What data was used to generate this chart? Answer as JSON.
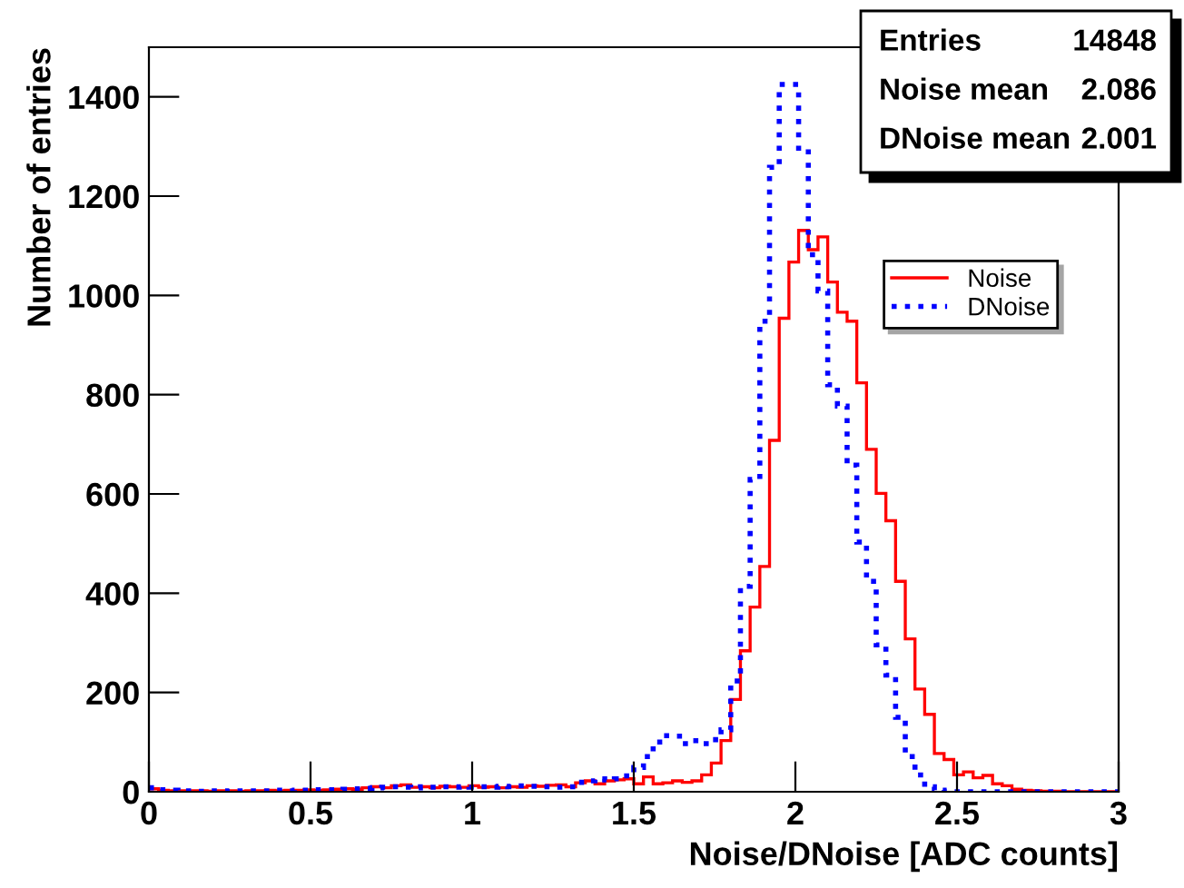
{
  "chart_data": {
    "type": "histogram",
    "xlabel": "Noise/DNoise [ADC counts]",
    "ylabel": "Number of entries",
    "bins": [
      0,
      0.03,
      0.06,
      0.09,
      0.12,
      0.15,
      0.18,
      0.21,
      0.24,
      0.27,
      0.3,
      0.33,
      0.36,
      0.39,
      0.42,
      0.45,
      0.48,
      0.51,
      0.54,
      0.57,
      0.6,
      0.63,
      0.66,
      0.69,
      0.72,
      0.75,
      0.78,
      0.81,
      0.84,
      0.87,
      0.9,
      0.93,
      0.96,
      0.99,
      1.02,
      1.05,
      1.08,
      1.11,
      1.14,
      1.17,
      1.2,
      1.23,
      1.26,
      1.29,
      1.32,
      1.35,
      1.38,
      1.41,
      1.44,
      1.47,
      1.5,
      1.53,
      1.56,
      1.59,
      1.62,
      1.65,
      1.68,
      1.71,
      1.74,
      1.77,
      1.8,
      1.83,
      1.86,
      1.89,
      1.92,
      1.95,
      1.98,
      2.01,
      2.04,
      2.07,
      2.1,
      2.13,
      2.16,
      2.19,
      2.22,
      2.25,
      2.28,
      2.31,
      2.34,
      2.37,
      2.4,
      2.43,
      2.46,
      2.49,
      2.52,
      2.55,
      2.58,
      2.61,
      2.64,
      2.67,
      2.7,
      2.73,
      2.76,
      2.79,
      2.82,
      2.85,
      2.88,
      2.91,
      2.94,
      2.97,
      3
    ],
    "series": [
      {
        "name": "Noise",
        "color": "#ff0000",
        "line_style": "solid",
        "values": [
          6,
          3,
          2,
          2,
          2,
          2,
          1,
          2,
          2,
          1,
          2,
          2,
          3,
          2,
          3,
          3,
          4,
          3,
          4,
          5,
          6,
          5,
          8,
          10,
          8,
          12,
          14,
          9,
          10,
          8,
          11,
          10,
          9,
          12,
          9,
          10,
          8,
          10,
          9,
          12,
          11,
          13,
          14,
          10,
          18,
          22,
          16,
          22,
          24,
          26,
          16,
          30,
          16,
          18,
          22,
          19,
          22,
          34,
          58,
          103,
          186,
          284,
          372,
          454,
          708,
          954,
          1067,
          1131,
          1092,
          1118,
          1027,
          966,
          948,
          824,
          690,
          601,
          546,
          424,
          308,
          207,
          156,
          77,
          65,
          34,
          40,
          28,
          33,
          16,
          12,
          5,
          3,
          2,
          1,
          1,
          0,
          0,
          0,
          0,
          0,
          0
        ]
      },
      {
        "name": "DNoise",
        "color": "#0000ff",
        "line_style": "dotted",
        "values": [
          8,
          4,
          3,
          2,
          2,
          1,
          2,
          2,
          1,
          2,
          2,
          2,
          2,
          3,
          2,
          3,
          3,
          4,
          4,
          4,
          5,
          6,
          7,
          8,
          9,
          10,
          9,
          8,
          10,
          9,
          10,
          9,
          10,
          9,
          10,
          9,
          11,
          10,
          12,
          11,
          10,
          10,
          9,
          10,
          19,
          22,
          26,
          24,
          26,
          32,
          49,
          71,
          100,
          113,
          112,
          97,
          103,
          97,
          105,
          125,
          223,
          414,
          629,
          948,
          1258,
          1425,
          1425,
          1289,
          1082,
          1009,
          820,
          777,
          658,
          503,
          424,
          296,
          235,
          150,
          71,
          34,
          10,
          3,
          1,
          0,
          0,
          0,
          0,
          0,
          0,
          0,
          0,
          0,
          0,
          0,
          0,
          0,
          0,
          0,
          0,
          0
        ]
      }
    ],
    "xlim": [
      0,
      3
    ],
    "xticks": [
      0,
      0.5,
      1,
      1.5,
      2,
      2.5,
      3
    ],
    "ylim": [
      0,
      1500
    ],
    "yticks": [
      0,
      200,
      400,
      600,
      800,
      1000,
      1200,
      1400
    ],
    "grid": false,
    "legend": "top right",
    "annotations": [
      "Entries",
      "14848",
      "Noise mean",
      "2.086",
      "DNoise mean",
      "2.001"
    ]
  }
}
